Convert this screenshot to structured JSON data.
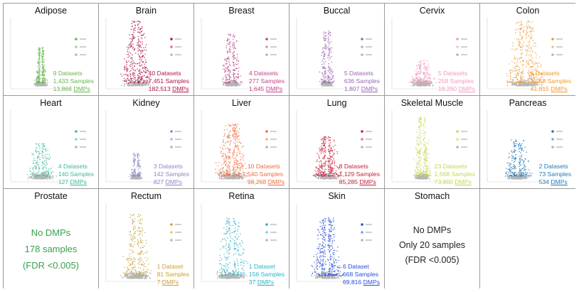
{
  "chart_data": [
    {
      "type": "scatter",
      "title": "Adipose",
      "datasets": "9 Datasets",
      "samples": "1,433 Samples",
      "dmps": "13,868",
      "dmps_label": "DMPs",
      "color": "#66b44e",
      "spread": 0.18,
      "height": 0.55,
      "density": 0.7,
      "offset": 0.0
    },
    {
      "type": "scatter",
      "title": "Brain",
      "datasets": "40 Datasets",
      "samples": "7,451 Samples",
      "dmps": "182,513",
      "dmps_label": "DMPs",
      "color": "#b0164a",
      "spread": 0.55,
      "height": 0.95,
      "density": 1.0,
      "offset": 0.0
    },
    {
      "type": "scatter",
      "title": "Breast",
      "datasets": "4 Datasets",
      "samples": "277 Samples",
      "dmps": "1,645",
      "dmps_label": "DMPs",
      "color": "#c0458c",
      "spread": 0.35,
      "height": 0.75,
      "density": 0.6,
      "offset": 0.0
    },
    {
      "type": "scatter",
      "title": "Buccal",
      "datasets": "5 Datasets",
      "samples": "636 Samples",
      "dmps": "1,807",
      "dmps_label": "DMPs",
      "color": "#9b67b0",
      "spread": 0.25,
      "height": 0.8,
      "density": 0.55,
      "offset": 0.0
    },
    {
      "type": "scatter",
      "title": "Cervix",
      "datasets": "5 Datasets",
      "samples": "258 Samples",
      "dmps": "19,290",
      "dmps_label": "DMPs",
      "color": "#f29ac0",
      "spread": 0.45,
      "height": 0.35,
      "density": 0.6,
      "offset": 0.0
    },
    {
      "type": "scatter",
      "title": "Colon",
      "datasets": "6 Datasets",
      "samples": "1,058 Samples",
      "dmps": "41,815",
      "dmps_label": "DMPs",
      "color": "#f2992e",
      "spread": 0.7,
      "height": 0.95,
      "density": 1.0,
      "offset": 0.25
    },
    {
      "type": "scatter",
      "title": "Heart",
      "datasets": "4 Datasets",
      "samples": "140 Samples",
      "dmps": "127",
      "dmps_label": "DMPs",
      "color": "#3cb8a0",
      "spread": 0.5,
      "height": 0.5,
      "density": 0.5,
      "offset": 0.0
    },
    {
      "type": "scatter",
      "title": "Kidney",
      "datasets": "3 Datasets",
      "samples": "142 Samples",
      "dmps": "827",
      "dmps_label": "DMPs",
      "color": "#8a88c8",
      "spread": 0.15,
      "height": 0.35,
      "density": 0.4,
      "offset": 0.0
    },
    {
      "type": "scatter",
      "title": "Liver",
      "datasets": "10 Datasets",
      "samples": "540 Samples",
      "dmps": "98,268",
      "dmps_label": "DMPs",
      "color": "#f26b3a",
      "spread": 0.6,
      "height": 0.8,
      "density": 1.0,
      "offset": 0.0
    },
    {
      "type": "scatter",
      "title": "Lung",
      "datasets": "8 Datasets",
      "samples": "1,129 Samples",
      "dmps": "85,285",
      "dmps_label": "DMPs",
      "color": "#c9203a",
      "spread": 0.5,
      "height": 0.6,
      "density": 0.9,
      "offset": 0.0
    },
    {
      "type": "scatter",
      "title": "Skeletal Muscle",
      "datasets": "23 Datasets",
      "samples": "1,568 Samples",
      "dmps": "73,800",
      "dmps_label": "DMPs",
      "color": "#c8d64a",
      "spread": 0.3,
      "height": 0.9,
      "density": 0.8,
      "offset": 0.0
    },
    {
      "type": "scatter",
      "title": "Pancreas",
      "datasets": "2 Datasets",
      "samples": "73 Samples",
      "dmps": "534",
      "dmps_label": "DMPs",
      "color": "#1b7ab8",
      "spread": 0.5,
      "height": 0.55,
      "density": 0.6,
      "offset": 0.0
    },
    {
      "type": "text",
      "title": "Prostate",
      "lines": [
        "No DMPs",
        "178 samples",
        "(FDR <0.005)"
      ],
      "color": "#3aa050"
    },
    {
      "type": "scatter",
      "title": "Rectum",
      "datasets": "1 Dataset",
      "samples": "81 Samples",
      "dmps": "7",
      "dmps_label": "DMPs",
      "color": "#c8a032",
      "spread": 0.55,
      "height": 0.85,
      "density": 0.7,
      "offset": 0.0
    },
    {
      "type": "scatter",
      "title": "Retina",
      "datasets": "1 Dataset",
      "samples": "156 Samples",
      "dmps": "37",
      "dmps_label": "DMPs",
      "color": "#2ab0c8",
      "spread": 0.6,
      "height": 0.8,
      "density": 0.7,
      "offset": 0.0
    },
    {
      "type": "scatter",
      "title": "Skin",
      "datasets": "6 Dataset",
      "samples": "668 Samples",
      "dmps": "69,816",
      "dmps_label": "DMPs",
      "color": "#2a50d8",
      "spread": 0.55,
      "height": 0.8,
      "density": 1.0,
      "offset": 0.0
    },
    {
      "type": "text",
      "title": "Stomach",
      "lines": [
        "No DMPs",
        "Only 20 samples",
        "(FDR <0.005)"
      ],
      "color": "#222222"
    },
    {
      "type": "empty",
      "title": ""
    }
  ],
  "colors": {
    "gray_points": "#b5b5b5",
    "border": "#9a9a9a",
    "legend_text": "#888888"
  }
}
